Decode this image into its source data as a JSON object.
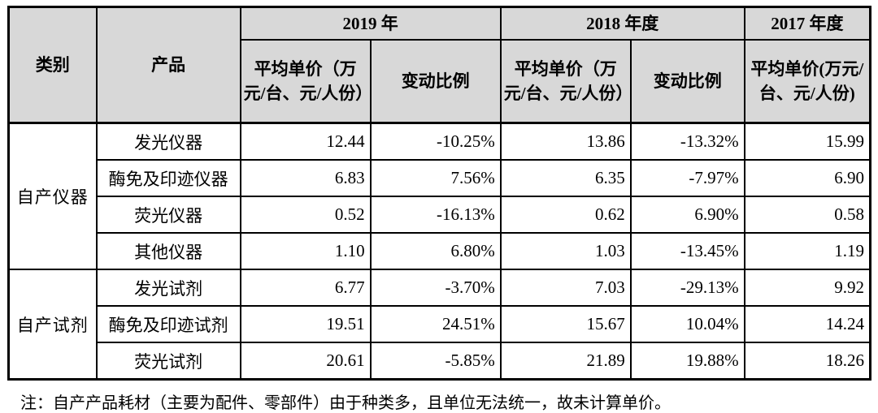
{
  "header": {
    "category": "类别",
    "product": "产品",
    "year2019": "2019 年",
    "year2018": "2018 年度",
    "year2017": "2017 年度",
    "avg_price_label": "平均单价（万元/台、元/人份）",
    "avg_price_label_2017": "平均单价(万元/台、元/人份)",
    "change_label": "变动比例"
  },
  "groups": [
    {
      "category": "自产仪器"
    },
    {
      "category": "自产试剂"
    }
  ],
  "rows": [
    {
      "product": "发光仪器",
      "avg2019": "12.44",
      "chg2019": "-10.25%",
      "avg2018": "13.86",
      "chg2018": "-13.32%",
      "avg2017": "15.99"
    },
    {
      "product": "酶免及印迹仪器",
      "avg2019": "6.83",
      "chg2019": "7.56%",
      "avg2018": "6.35",
      "chg2018": "-7.97%",
      "avg2017": "6.90"
    },
    {
      "product": "荧光仪器",
      "avg2019": "0.52",
      "chg2019": "-16.13%",
      "avg2018": "0.62",
      "chg2018": "6.90%",
      "avg2017": "0.58"
    },
    {
      "product": "其他仪器",
      "avg2019": "1.10",
      "chg2019": "6.80%",
      "avg2018": "1.03",
      "chg2018": "-13.45%",
      "avg2017": "1.19"
    },
    {
      "product": "发光试剂",
      "avg2019": "6.77",
      "chg2019": "-3.70%",
      "avg2018": "7.03",
      "chg2018": "-29.13%",
      "avg2017": "9.92"
    },
    {
      "product": "酶免及印迹试剂",
      "avg2019": "19.51",
      "chg2019": "24.51%",
      "avg2018": "15.67",
      "chg2018": "10.04%",
      "avg2017": "14.24"
    },
    {
      "product": "荧光试剂",
      "avg2019": "20.61",
      "chg2019": "-5.85%",
      "avg2018": "21.89",
      "chg2018": "19.88%",
      "avg2017": "18.26"
    }
  ],
  "note": "注：自产产品耗材（主要为配件、零部件）由于种类多，且单位无法统一，故未计算单价。",
  "colors": {
    "header_bg": "#d8d8d8",
    "border": "#000000",
    "text": "#000000",
    "background": "#ffffff"
  }
}
